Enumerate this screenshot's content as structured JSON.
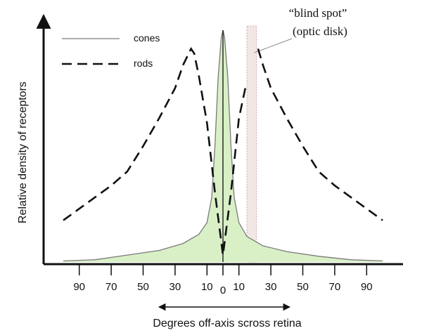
{
  "chart_data": {
    "type": "line",
    "ylabel": "Relative density of receptors",
    "xlabel": "Degrees off-axis scross retina",
    "x_ticks": [
      -90,
      -70,
      -50,
      -30,
      -10,
      0,
      10,
      30,
      50,
      70,
      90
    ],
    "x_tick_labels": [
      "90",
      "70",
      "50",
      "30",
      "10",
      "0",
      "10",
      "30",
      "50",
      "70",
      "90"
    ],
    "xlim": [
      -100,
      100
    ],
    "ylim": [
      0,
      100
    ],
    "grid": false,
    "legend_position": "top-left",
    "series": [
      {
        "name": "cones",
        "style": "solid",
        "fill_color": "#d9f0c7",
        "line_color": "#7a7a7a",
        "points": [
          [
            -100,
            0.5
          ],
          [
            -80,
            1
          ],
          [
            -60,
            3
          ],
          [
            -40,
            5
          ],
          [
            -25,
            8
          ],
          [
            -15,
            12
          ],
          [
            -10,
            17
          ],
          [
            -7,
            28
          ],
          [
            -5,
            50
          ],
          [
            -3,
            80
          ],
          [
            -1,
            97
          ],
          [
            0,
            100
          ],
          [
            1,
            97
          ],
          [
            3,
            80
          ],
          [
            5,
            50
          ],
          [
            7,
            28
          ],
          [
            10,
            17
          ],
          [
            15,
            11
          ],
          [
            25,
            7
          ],
          [
            40,
            4.5
          ],
          [
            60,
            2.5
          ],
          [
            80,
            1
          ],
          [
            100,
            0.5
          ]
        ]
      },
      {
        "name": "rods",
        "style": "dashed",
        "line_color": "#111111",
        "gap": [
          15,
          21
        ],
        "points": [
          [
            -100,
            18
          ],
          [
            -90,
            23
          ],
          [
            -80,
            28
          ],
          [
            -70,
            33
          ],
          [
            -60,
            39
          ],
          [
            -50,
            50
          ],
          [
            -40,
            62
          ],
          [
            -30,
            75
          ],
          [
            -25,
            85
          ],
          [
            -20,
            92
          ],
          [
            -18,
            90
          ],
          [
            -15,
            80
          ],
          [
            -10,
            60
          ],
          [
            -5,
            30
          ],
          [
            0,
            3
          ],
          [
            5,
            30
          ],
          [
            10,
            62
          ],
          [
            14,
            75
          ],
          [
            22,
            92
          ],
          [
            25,
            85
          ],
          [
            30,
            75
          ],
          [
            40,
            62
          ],
          [
            50,
            50
          ],
          [
            60,
            39
          ],
          [
            70,
            33
          ],
          [
            80,
            28
          ],
          [
            90,
            23
          ],
          [
            100,
            18
          ]
        ]
      }
    ],
    "annotations": [
      {
        "text_lines": [
          "“blind spot”",
          "(optic disk)"
        ],
        "x_range": [
          15,
          21
        ]
      }
    ],
    "direction_arrow": "both"
  }
}
